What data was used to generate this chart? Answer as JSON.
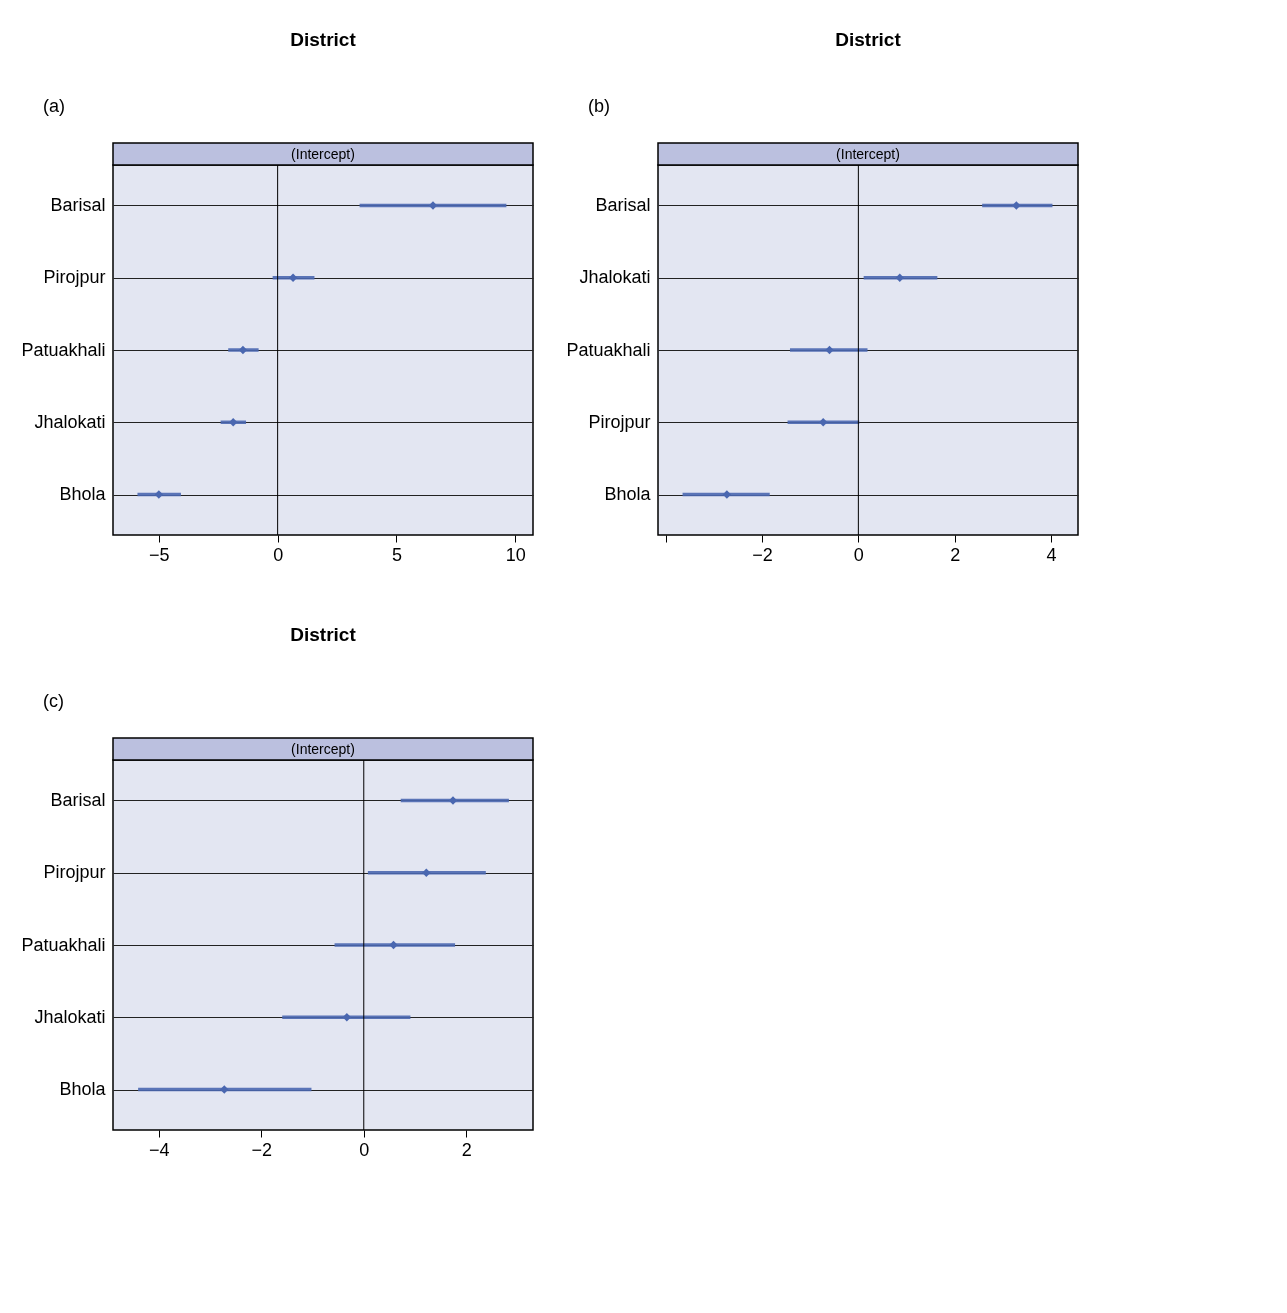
{
  "chart_data": [
    {
      "type": "scatter",
      "orientation": "horizontal",
      "title": "District",
      "annotations": [
        "(a)",
        "(Intercept)"
      ],
      "categories": [
        "Barisal",
        "Pirojpur",
        "Patuakhali",
        "Jhalokati",
        "Bhola"
      ],
      "marker": "diamond",
      "grid": "y",
      "series": [
        {
          "color": "#4a67b0",
          "values": [
            6.54,
            0.65,
            -1.46,
            -1.87,
            -5.0
          ],
          "errors": [
            [
              3.45,
              9.63
            ],
            [
              -0.21,
              1.55
            ],
            [
              -2.08,
              -0.8
            ],
            [
              -2.4,
              -1.33
            ],
            [
              -5.9,
              -4.07
            ]
          ]
        }
      ],
      "xlim": [
        -6.93,
        10.75
      ],
      "xticks": [
        {
          "value": -5,
          "label": "−5"
        },
        0,
        5,
        10
      ],
      "ref_lines": [
        {
          "axis": "x",
          "value": 0,
          "color": "#000000"
        }
      ]
    },
    {
      "type": "scatter",
      "orientation": "horizontal",
      "title": "District",
      "annotations": [
        "(b)",
        "(Intercept)"
      ],
      "categories": [
        "Barisal",
        "Jhalokati",
        "Patuakhali",
        "Pirojpur",
        "Bhola"
      ],
      "marker": "diamond",
      "grid": "y",
      "series": [
        {
          "color": "#4a67b0",
          "values": [
            3.28,
            0.86,
            -0.6,
            -0.73,
            -2.73
          ],
          "errors": [
            [
              2.57,
              4.03
            ],
            [
              0.11,
              1.64
            ],
            [
              -1.42,
              0.19
            ],
            [
              -1.47,
              0.02
            ],
            [
              -3.65,
              -1.84
            ]
          ]
        }
      ],
      "xlim": [
        -4.16,
        4.56
      ],
      "xticks": [
        {
          "value": -4,
          "label": null
        },
        {
          "value": -2,
          "label": "−2"
        },
        0,
        2,
        4
      ],
      "ref_lines": [
        {
          "axis": "x",
          "value": 0,
          "color": "#000000"
        }
      ]
    },
    {
      "type": "scatter",
      "orientation": "horizontal",
      "title": "District",
      "annotations": [
        "(c)",
        "(Intercept)"
      ],
      "categories": [
        "Barisal",
        "Pirojpur",
        "Patuakhali",
        "Jhalokati",
        "Bhola"
      ],
      "marker": "diamond",
      "grid": "y",
      "series": [
        {
          "color": "#4a67b0",
          "values": [
            1.74,
            1.22,
            0.58,
            -0.33,
            -2.72
          ],
          "errors": [
            [
              0.72,
              2.83
            ],
            [
              0.08,
              2.38
            ],
            [
              -0.57,
              1.78
            ],
            [
              -1.59,
              0.91
            ],
            [
              -4.4,
              -1.02
            ]
          ]
        }
      ],
      "xlim": [
        -4.89,
        3.3
      ],
      "xticks": [
        {
          "value": -4,
          "label": "−4"
        },
        {
          "value": -2,
          "label": "−2"
        },
        0,
        2
      ],
      "ref_lines": [
        {
          "axis": "x",
          "value": 0,
          "color": "#000000"
        }
      ]
    }
  ]
}
